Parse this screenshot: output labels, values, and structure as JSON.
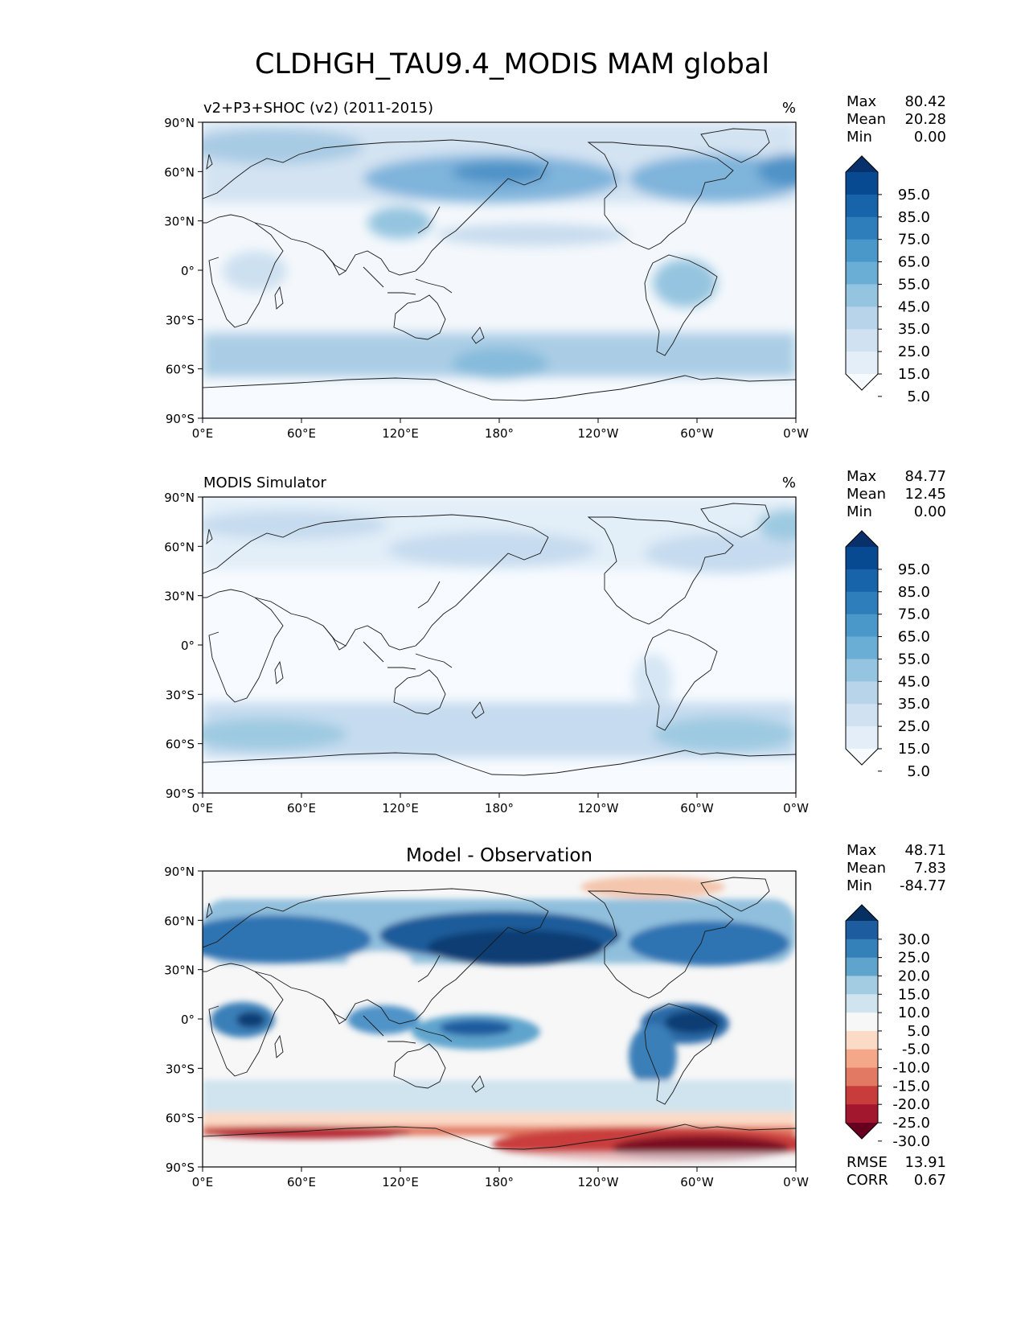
{
  "figure": {
    "title": "CLDHGH_TAU9.4_MODIS MAM global"
  },
  "axes": {
    "lat_ticks": [
      "90°N",
      "60°N",
      "30°N",
      "0°",
      "30°S",
      "60°S",
      "90°S"
    ],
    "lon_ticks": [
      "0°E",
      "60°E",
      "120°E",
      "180°",
      "120°W",
      "60°W",
      "0°W"
    ]
  },
  "panels": [
    {
      "id": "test",
      "title": "v2+P3+SHOC (v2) (2011-2015)",
      "units": "%",
      "stats": {
        "max_label": "Max",
        "max": "80.42",
        "mean_label": "Mean",
        "mean": "20.28",
        "min_label": "Min",
        "min": "0.00"
      },
      "colorbar": {
        "labels": [
          "95.0",
          "85.0",
          "75.0",
          "65.0",
          "55.0",
          "45.0",
          "35.0",
          "25.0",
          "15.0",
          "5.0"
        ],
        "colors": [
          "#08306b",
          "#084a91",
          "#1764ab",
          "#2e7ebc",
          "#4a98c9",
          "#6aaed6",
          "#94c4df",
          "#b7d4ea",
          "#d0e1f2",
          "#e3eef9",
          "#f7fbff"
        ]
      }
    },
    {
      "id": "ref",
      "title": "MODIS Simulator",
      "units": "%",
      "stats": {
        "max_label": "Max",
        "max": "84.77",
        "mean_label": "Mean",
        "mean": "12.45",
        "min_label": "Min",
        "min": "0.00"
      },
      "colorbar": {
        "labels": [
          "95.0",
          "85.0",
          "75.0",
          "65.0",
          "55.0",
          "45.0",
          "35.0",
          "25.0",
          "15.0",
          "5.0"
        ],
        "colors": [
          "#08306b",
          "#084a91",
          "#1764ab",
          "#2e7ebc",
          "#4a98c9",
          "#6aaed6",
          "#94c4df",
          "#b7d4ea",
          "#d0e1f2",
          "#e3eef9",
          "#f7fbff"
        ]
      }
    },
    {
      "id": "diff",
      "title": "Model - Observation",
      "units": "",
      "stats": {
        "max_label": "Max",
        "max": "48.71",
        "mean_label": "Mean",
        "mean": "7.83",
        "min_label": "Min",
        "min": "-84.77"
      },
      "colorbar": {
        "labels": [
          "30.0",
          "25.0",
          "20.0",
          "15.0",
          "10.0",
          "5.0",
          "-5.0",
          "-10.0",
          "-15.0",
          "-20.0",
          "-25.0",
          "-30.0"
        ],
        "colors": [
          "#053061",
          "#1c5c9f",
          "#3480b9",
          "#5fa4cd",
          "#a3cce3",
          "#d0e4ef",
          "#f7f7f7",
          "#fbdac6",
          "#f4a889",
          "#e27a63",
          "#c93c3c",
          "#a2172e",
          "#67001f"
        ]
      },
      "metrics": {
        "rmse_label": "RMSE",
        "rmse": "13.91",
        "corr_label": "CORR",
        "corr": "0.67"
      }
    }
  ]
}
